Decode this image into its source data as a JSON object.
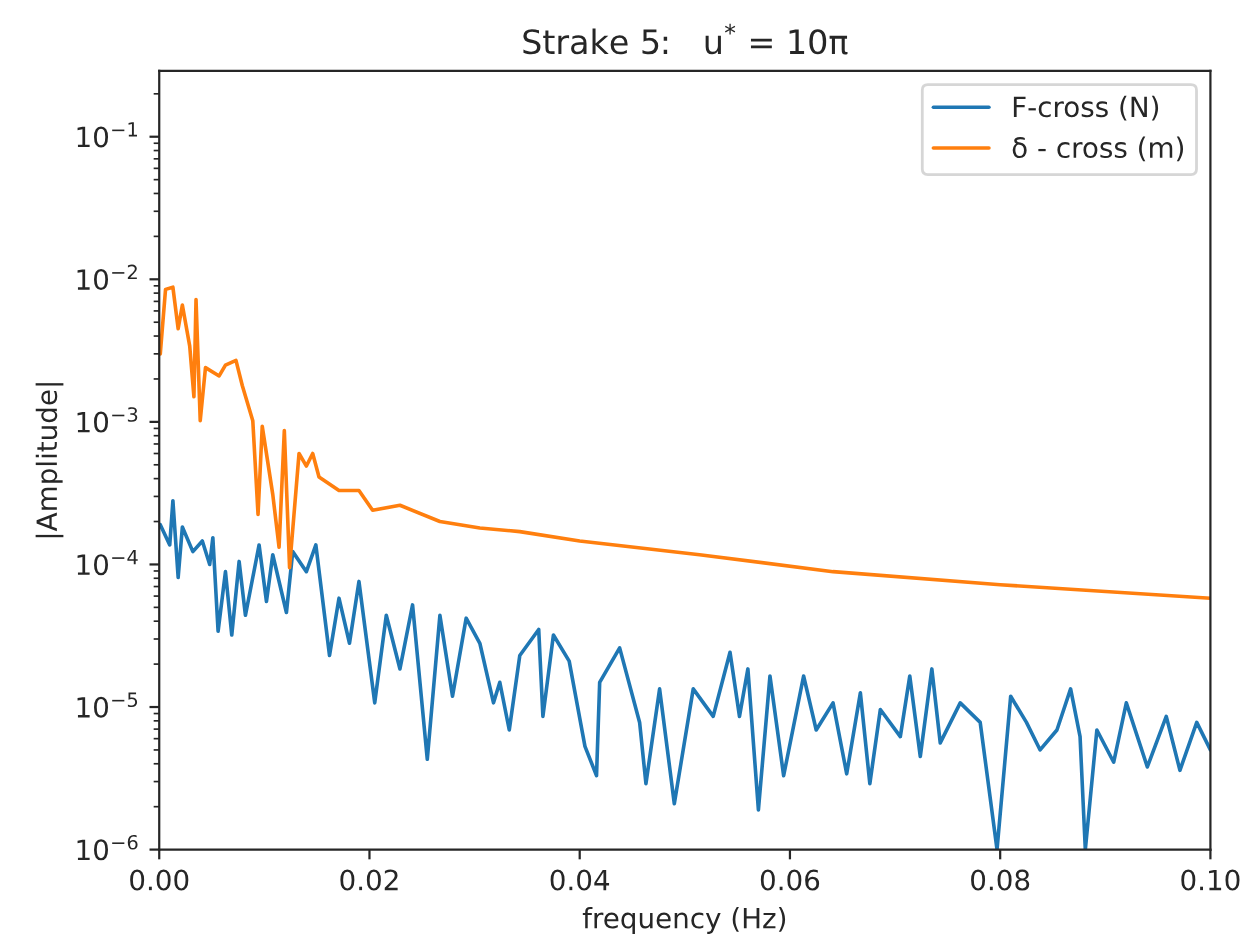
{
  "chart_data": {
    "type": "line",
    "title": "Strake 5:   u$^{*}$ = 10π",
    "xlabel": "frequency (Hz)",
    "ylabel": "|Amplitude|",
    "log": "y",
    "grid": false,
    "legend": "top right",
    "line_style": "solid",
    "marker": "none",
    "xlim": [
      0,
      0.1
    ],
    "xticks": [
      {
        "value": 0,
        "label": "0.00"
      },
      {
        "value": 0.02,
        "label": "0.02"
      },
      {
        "value": 0.04,
        "label": "0.04"
      },
      {
        "value": 0.06,
        "label": "0.06"
      },
      {
        "value": 0.08,
        "label": "0.08"
      },
      {
        "value": 0.1,
        "label": "0.10"
      }
    ],
    "ylim": [
      1e-06,
      0.29
    ],
    "yticks": [
      {
        "value": 1e-06,
        "label": "10$^{−6}$"
      },
      {
        "value": 1e-05,
        "label": "10$^{−5}$"
      },
      {
        "value": 0.0001,
        "label": "10$^{−4}$"
      },
      {
        "value": 0.001,
        "label": "10$^{−3}$"
      },
      {
        "value": 0.01,
        "label": "10$^{−2}$"
      },
      {
        "value": 0.1,
        "label": "10$^{−1}$"
      }
    ],
    "series": [
      {
        "name": "F-cross (N)",
        "color": "#1f77b4",
        "x": [
          0.0001,
          0.001,
          0.0013,
          0.0018,
          0.0022,
          0.0032,
          0.0041,
          0.0048,
          0.0051,
          0.0056,
          0.0063,
          0.0069,
          0.0076,
          0.0082,
          0.0095,
          0.0102,
          0.0108,
          0.0121,
          0.0127,
          0.014,
          0.0149,
          0.0162,
          0.0171,
          0.0181,
          0.019,
          0.0205,
          0.0216,
          0.0229,
          0.0241,
          0.0255,
          0.0267,
          0.0279,
          0.0292,
          0.0305,
          0.0318,
          0.0324,
          0.0333,
          0.0343,
          0.0361,
          0.0365,
          0.0375,
          0.039,
          0.0405,
          0.0416,
          0.0419,
          0.0438,
          0.0457,
          0.0463,
          0.0476,
          0.049,
          0.0508,
          0.0527,
          0.0543,
          0.0552,
          0.056,
          0.057,
          0.0581,
          0.0594,
          0.0613,
          0.0625,
          0.0641,
          0.0654,
          0.0667,
          0.0676,
          0.0686,
          0.0705,
          0.0714,
          0.0724,
          0.0735,
          0.0743,
          0.0762,
          0.0781,
          0.0797,
          0.081,
          0.0825,
          0.0838,
          0.0854,
          0.0867,
          0.0876,
          0.0881,
          0.0892,
          0.0908,
          0.092,
          0.094,
          0.0958,
          0.0971,
          0.0987,
          0.1
        ],
        "values": [
          0.00019,
          0.000137,
          0.00028,
          8.1e-05,
          0.000183,
          0.000123,
          0.000146,
          0.0001,
          0.000154,
          3.4e-05,
          8.9e-05,
          3.2e-05,
          0.000105,
          4.4e-05,
          0.000137,
          5.5e-05,
          0.000117,
          4.6e-05,
          0.000123,
          8.9e-05,
          0.000137,
          2.3e-05,
          5.8e-05,
          2.8e-05,
          7.6e-05,
          1.07e-05,
          4.4e-05,
          1.85e-05,
          5.2e-05,
          4.3e-06,
          4.4e-05,
          1.19e-05,
          4.2e-05,
          2.8e-05,
          1.07e-05,
          1.49e-05,
          6.9e-06,
          2.3e-05,
          3.5e-05,
          8.6e-06,
          3.2e-05,
          2.1e-05,
          5.3e-06,
          3.3e-06,
          1.49e-05,
          2.6e-05,
          7.8e-06,
          2.9e-06,
          1.34e-05,
          2.1e-06,
          1.34e-05,
          8.6e-06,
          2.42e-05,
          8.6e-06,
          1.85e-05,
          1.9e-06,
          1.65e-05,
          3.3e-06,
          1.65e-05,
          6.9e-06,
          1.07e-05,
          3.4e-06,
          1.26e-05,
          2.9e-06,
          9.6e-06,
          6.2e-06,
          1.65e-05,
          4.5e-06,
          1.85e-05,
          5.6e-06,
          1.07e-05,
          7.8e-06,
          1e-06,
          1.19e-05,
          7.8e-06,
          5e-06,
          6.9e-06,
          1.34e-05,
          6.2e-06,
          1e-06,
          6.9e-06,
          4.1e-06,
          1.07e-05,
          3.8e-06,
          8.6e-06,
          3.6e-06,
          7.8e-06,
          5e-06
        ]
      },
      {
        "name": "δ - cross (m)",
        "color": "#ff7f0e",
        "x": [
          0.0001,
          0.0006,
          0.0013,
          0.0018,
          0.0022,
          0.0029,
          0.0033,
          0.0035,
          0.0039,
          0.0044,
          0.0057,
          0.0063,
          0.0073,
          0.0079,
          0.0089,
          0.0094,
          0.0098,
          0.0108,
          0.0114,
          0.0119,
          0.0124,
          0.0133,
          0.014,
          0.0146,
          0.0152,
          0.0171,
          0.019,
          0.0203,
          0.0229,
          0.0267,
          0.0305,
          0.0343,
          0.04,
          0.0514,
          0.0641,
          0.08,
          0.1
        ],
        "values": [
          0.003,
          0.0085,
          0.0088,
          0.0045,
          0.0066,
          0.0034,
          0.0015,
          0.0072,
          0.00102,
          0.0024,
          0.0021,
          0.0025,
          0.0027,
          0.0018,
          0.00102,
          0.000224,
          0.00093,
          0.00031,
          0.000132,
          0.00087,
          9.5e-05,
          0.0006,
          0.00049,
          0.0006,
          0.00041,
          0.00033,
          0.00033,
          0.00024,
          0.00026,
          0.0002,
          0.00018,
          0.00017,
          0.000146,
          0.000117,
          8.9e-05,
          7.2e-05,
          5.8e-05
        ]
      }
    ]
  }
}
